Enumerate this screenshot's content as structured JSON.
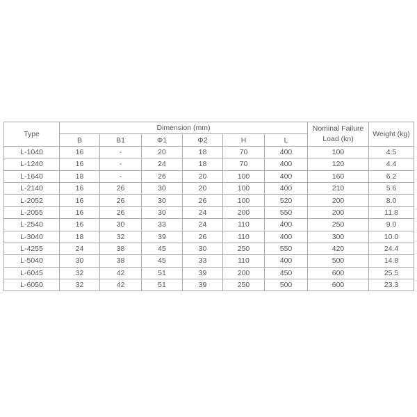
{
  "table": {
    "header": {
      "type": "Type",
      "dimension": "Dimension (mm)",
      "load": "Nominal Failure Load (kn)",
      "weight": "Weight (kg)",
      "dims": [
        "B",
        "B1",
        "Φ1",
        "Φ2",
        "H",
        "L"
      ]
    },
    "rows": [
      [
        "L-1040",
        "16",
        "-",
        "20",
        "18",
        "70",
        "400",
        "100",
        "4.5"
      ],
      [
        "L-1240",
        "16",
        "-",
        "24",
        "18",
        "70",
        "400",
        "120",
        "4.4"
      ],
      [
        "L-1640",
        "18",
        "-",
        "26",
        "20",
        "100",
        "400",
        "160",
        "6.2"
      ],
      [
        "L-2140",
        "16",
        "26",
        "30",
        "20",
        "100",
        "400",
        "210",
        "5.6"
      ],
      [
        "L-2052",
        "16",
        "26",
        "30",
        "26",
        "100",
        "520",
        "200",
        "8.0"
      ],
      [
        "L-2055",
        "16",
        "26",
        "30",
        "24",
        "200",
        "550",
        "200",
        "11.8"
      ],
      [
        "L-2540",
        "16",
        "30",
        "33",
        "24",
        "110",
        "400",
        "250",
        "9.0"
      ],
      [
        "L-3040",
        "18",
        "32",
        "39",
        "26",
        "110",
        "400",
        "300",
        "10.0"
      ],
      [
        "L-4255",
        "24",
        "38",
        "45",
        "30",
        "250",
        "550",
        "420",
        "24.4"
      ],
      [
        "L-5040",
        "30",
        "38",
        "45",
        "33",
        "110",
        "400",
        "500",
        "14.8"
      ],
      [
        "L-6045",
        "32",
        "42",
        "51",
        "39",
        "200",
        "450",
        "600",
        "25.5"
      ],
      [
        "L-6050",
        "32",
        "42",
        "51",
        "39",
        "250",
        "500",
        "600",
        "23.3"
      ]
    ]
  }
}
